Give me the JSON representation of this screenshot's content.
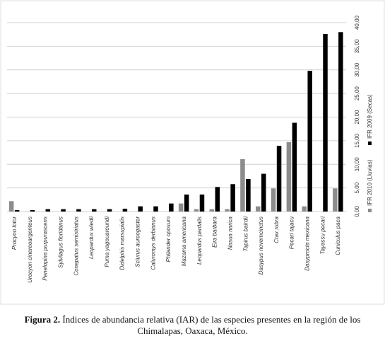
{
  "chart_data": {
    "type": "bar",
    "categories": [
      "Procyon lotor",
      "Urocyon cinereoargenteus",
      "Penelopina purpurascens",
      "Sylvilagus floridanus",
      "Conepatus semistriatus",
      "Leopardus wiedii",
      "Puma yagouaroundi",
      "Didelphis marsupialis",
      "Sciurus aureogaster",
      "Caluromys derbianus",
      "Philander oposum",
      "Mazama americana",
      "Leopardus pardalis",
      "Eira barbara",
      "Nasua narica",
      "Tapirus bairdii",
      "Dasypus novemcinctus",
      "Crax rubra",
      "Pecari tajacu",
      "Dasyprocta mexicana",
      "Tayassu pecari",
      "Cuniculus paca"
    ],
    "series": [
      {
        "name": "IFR 2010 (Lluvias)",
        "color": "#8c8c8c",
        "values": [
          2.2,
          0,
          0,
          0,
          0,
          0,
          0,
          0,
          0,
          0,
          0,
          1.7,
          0.5,
          0.5,
          0.5,
          11.1,
          1.1,
          4.9,
          14.7,
          1.1,
          0,
          4.9
        ]
      },
      {
        "name": "IFR 2009 (Secas)",
        "color": "#000000",
        "values": [
          0.3,
          0.3,
          0.5,
          0.5,
          0.5,
          0.5,
          0.5,
          0.6,
          1.1,
          1.1,
          1.7,
          3.6,
          3.6,
          5.2,
          5.8,
          6.9,
          8.0,
          13.9,
          18.8,
          29.8,
          37.6,
          38.0
        ]
      }
    ],
    "ylim": [
      0,
      40
    ],
    "yticks": [
      {
        "value": 0,
        "label": "0,00"
      },
      {
        "value": 5,
        "label": "5,00"
      },
      {
        "value": 10,
        "label": "10,00"
      },
      {
        "value": 15,
        "label": "15,00"
      },
      {
        "value": 20,
        "label": "20,00"
      },
      {
        "value": 25,
        "label": "25,00"
      },
      {
        "value": 30,
        "label": "30,00"
      },
      {
        "value": 35,
        "label": "35,00"
      },
      {
        "value": 40,
        "label": "40,00"
      }
    ],
    "grid": true
  },
  "figure_caption": {
    "label": "Figura 2.",
    "text": "Índices de abundancia relativa (IAR) de las especies presentes en la región de los Chimalapas, Oaxaca, México."
  }
}
